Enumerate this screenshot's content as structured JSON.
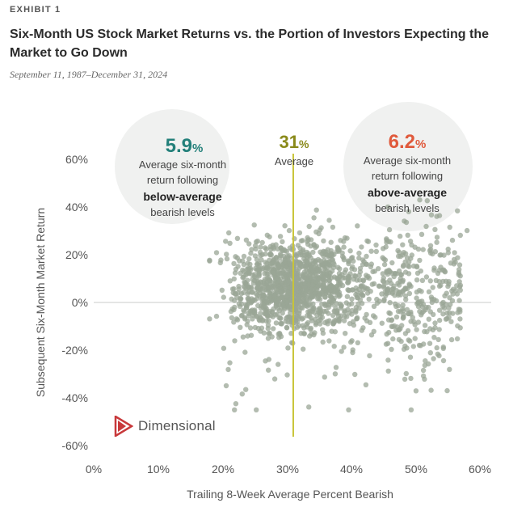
{
  "header": {
    "exhibit_label": "EXHIBIT 1",
    "title": "Six-Month US Stock Market Returns vs. the Portion of Investors Expecting the Market to Go Down",
    "subtitle": "September 11, 1987–December 31, 2024"
  },
  "brand": {
    "name": "Dimensional",
    "color": "#c8393b"
  },
  "colors": {
    "points": "#9aa596",
    "average_line": "#c9c437",
    "callout_bg": "#f0f1f0",
    "below_value": "#23807a",
    "above_value": "#e05a3c",
    "average_value": "#8a8a1a"
  },
  "chart_data": {
    "type": "scatter",
    "xlabel": "Trailing 8-Week Average Percent Bearish",
    "ylabel": "Subsequent Six-Month Market Return",
    "xlim": [
      0,
      60
    ],
    "ylim": [
      -60,
      60
    ],
    "x_ticks": [
      "0%",
      "10%",
      "20%",
      "30%",
      "40%",
      "50%",
      "60%"
    ],
    "y_ticks": [
      "60%",
      "40%",
      "20%",
      "0%",
      "-20%",
      "-40%",
      "-60%"
    ],
    "grid": "horizontal zero line only",
    "average_line": {
      "x": 31,
      "value": "31",
      "unit": "%",
      "label": "Average"
    },
    "callouts": {
      "below": {
        "value": "5.9",
        "unit": "%",
        "line1": "Average six-month",
        "line2": "return following",
        "line3": "below-average",
        "line4": "bearish levels"
      },
      "above": {
        "value": "6.2",
        "unit": "%",
        "line1": "Average six-month",
        "line2": "return following",
        "line3": "above-average",
        "line4": "bearish levels"
      }
    },
    "point_cloud": {
      "approx_count": 1700,
      "x_range": [
        18,
        58
      ],
      "y_range": [
        -45,
        43
      ],
      "densest_region": {
        "x": [
          22,
          40
        ],
        "y": [
          -10,
          22
        ]
      }
    }
  }
}
